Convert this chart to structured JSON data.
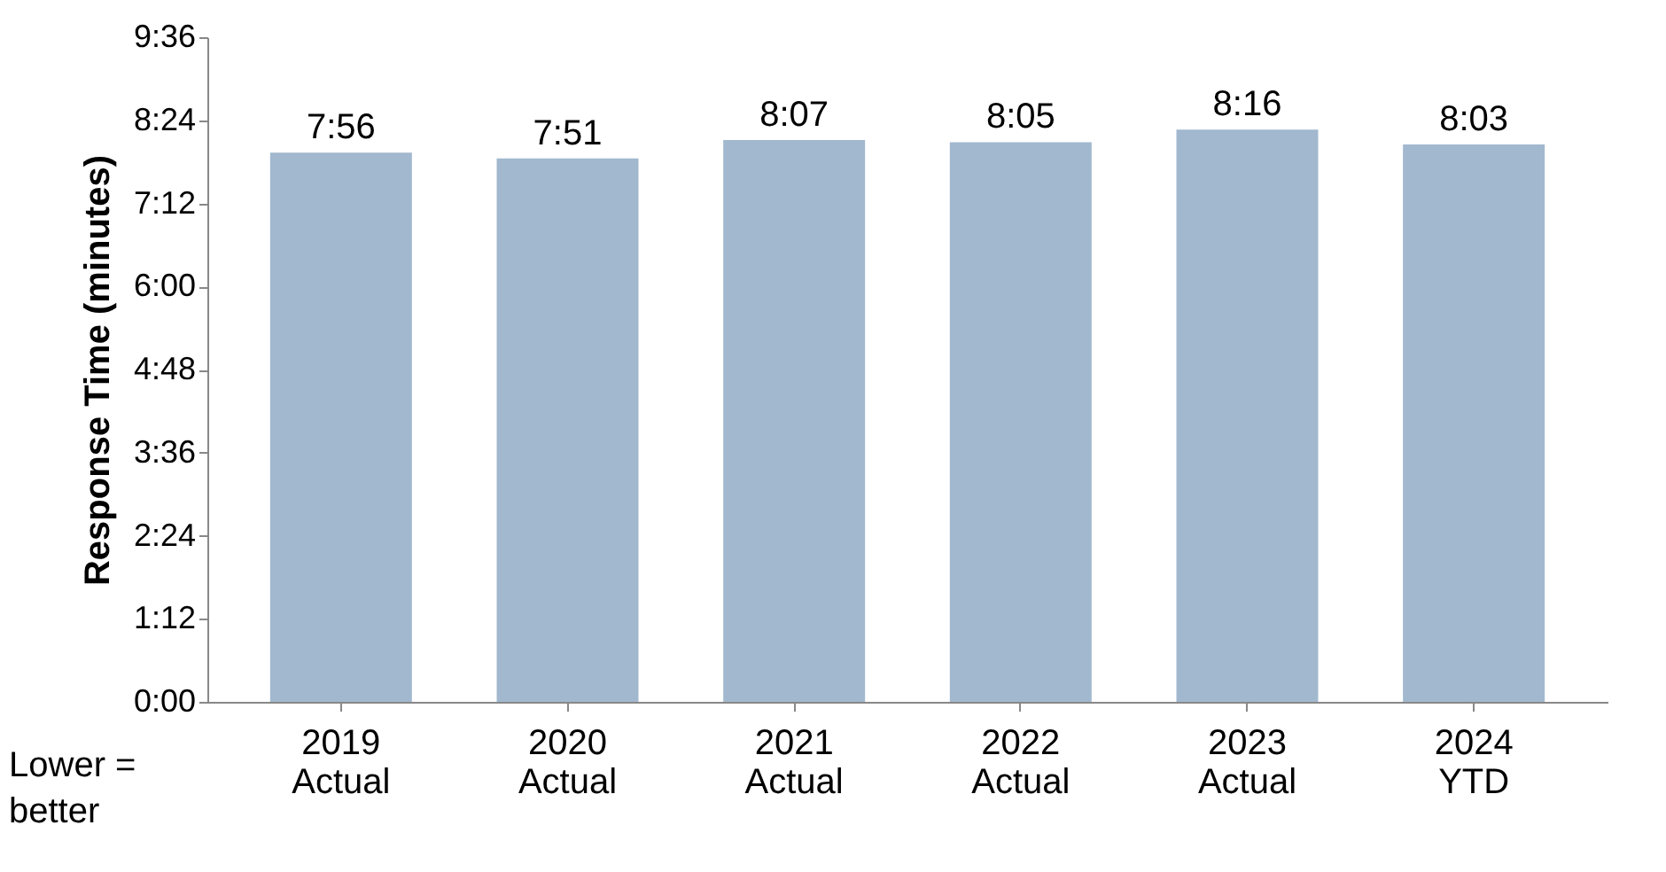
{
  "chart_data": {
    "type": "bar",
    "ylabel": "Response Time (minutes)",
    "categories": [
      "2019 Actual",
      "2020 Actual",
      "2021 Actual",
      "2022 Actual",
      "2023 Actual",
      "2024 YTD"
    ],
    "values": [
      7.9333,
      7.85,
      8.1167,
      8.0833,
      8.2667,
      8.05
    ],
    "value_labels": [
      "7:56",
      "7:51",
      "8:07",
      "8:05",
      "8:16",
      "8:03"
    ],
    "color": "#a2b8cf",
    "ylim": [
      0,
      9.6
    ],
    "yticks": [
      {
        "value": 0,
        "label": "0:00"
      },
      {
        "value": 1.2,
        "label": "1:12"
      },
      {
        "value": 2.4,
        "label": "2:24"
      },
      {
        "value": 3.6,
        "label": "3:36"
      },
      {
        "value": 4.8,
        "label": "4:48"
      },
      {
        "value": 6,
        "label": "6:00"
      },
      {
        "value": 7.2,
        "label": "7:12"
      },
      {
        "value": 8.4,
        "label": "8:24"
      },
      {
        "value": 9.6,
        "label": "9:36"
      }
    ],
    "grid": false,
    "annotations": [
      "Lower = better"
    ]
  }
}
